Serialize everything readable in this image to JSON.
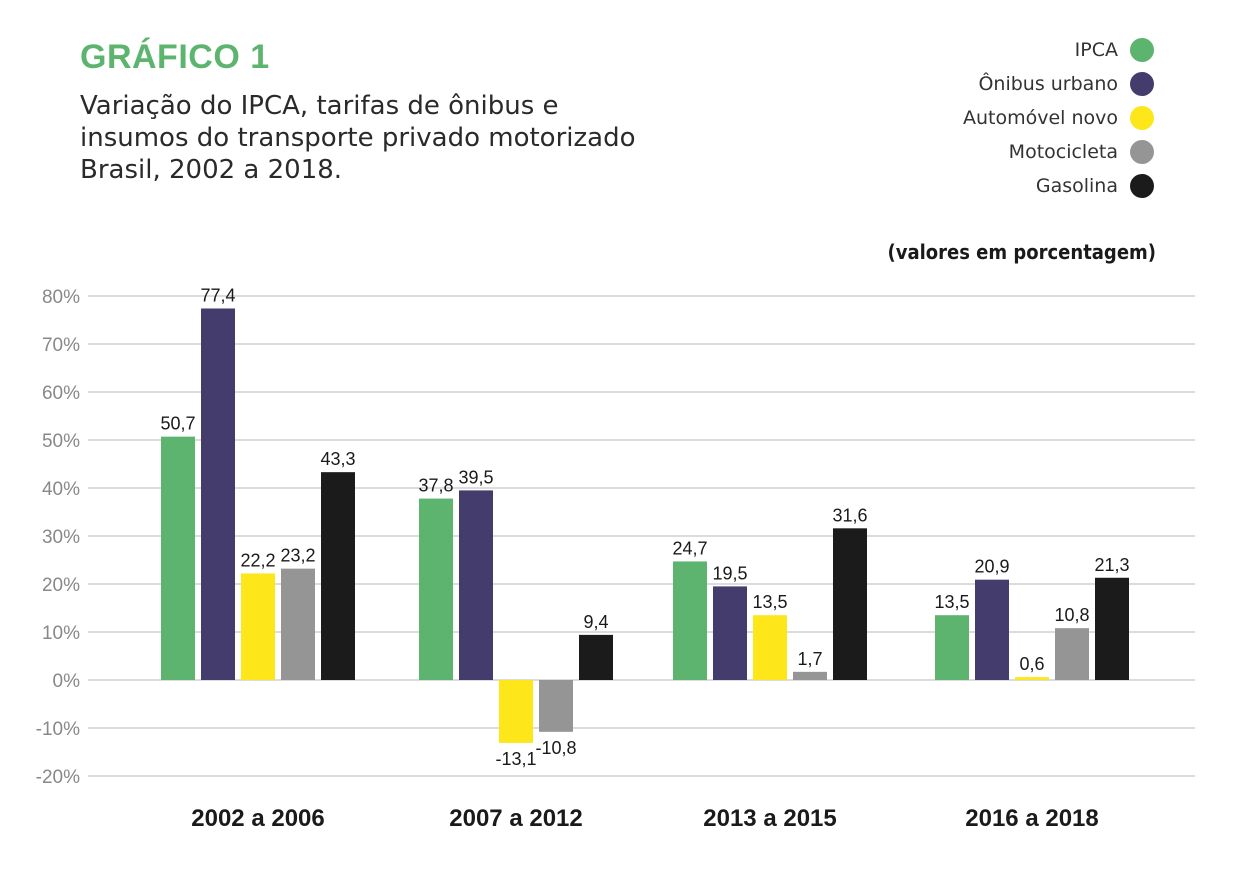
{
  "header": {
    "heading": "GRÁFICO 1",
    "subtitle_lines": [
      "Variação do IPCA, tarifas de ônibus e",
      "insumos do transporte privado motorizado",
      "Brasil, 2002 a 2018."
    ],
    "units_note": "(valores em porcentagem)"
  },
  "chart_data": {
    "type": "bar",
    "title": "GRÁFICO 1",
    "subtitle": "Variação do IPCA, tarifas de ônibus e insumos do transporte privado motorizado Brasil, 2002 a 2018.",
    "xlabel": "",
    "ylabel": "",
    "ylim": [
      -20,
      80
    ],
    "yticks": [
      80,
      70,
      60,
      50,
      40,
      30,
      20,
      10,
      0,
      -10,
      -20
    ],
    "ytick_labels": [
      "80%",
      "70%",
      "60%",
      "50%",
      "40%",
      "30%",
      "20%",
      "10%",
      "0%",
      "-10%",
      "-20%"
    ],
    "grid": true,
    "legend_position": "top-right",
    "categories": [
      "2002 a 2006",
      "2007 a 2012",
      "2013 a 2015",
      "2016 a 2018"
    ],
    "series": [
      {
        "name": "IPCA",
        "color": "#5db46e",
        "values": [
          50.7,
          37.8,
          24.7,
          13.5
        ],
        "labels": [
          "50,7",
          "37,8",
          "24,7",
          "13,5"
        ]
      },
      {
        "name": "Ônibus urbano",
        "color": "#453c6e",
        "values": [
          77.4,
          39.5,
          19.5,
          20.9
        ],
        "labels": [
          "77,4",
          "39,5",
          "19,5",
          "20,9"
        ]
      },
      {
        "name": "Automóvel novo",
        "color": "#fde619",
        "values": [
          22.2,
          -13.1,
          13.5,
          0.6
        ],
        "labels": [
          "22,2",
          "-13,1",
          "13,5",
          "0,6"
        ]
      },
      {
        "name": "Motocicleta",
        "color": "#959595",
        "values": [
          23.2,
          -10.8,
          1.7,
          10.8
        ],
        "labels": [
          "23,2",
          "-10,8",
          "1,7",
          "10,8"
        ]
      },
      {
        "name": "Gasolina",
        "color": "#1b1b1b",
        "values": [
          43.3,
          9.4,
          31.6,
          21.3
        ],
        "labels": [
          "43,3",
          "9,4",
          "31,6",
          "21,3"
        ]
      }
    ]
  }
}
